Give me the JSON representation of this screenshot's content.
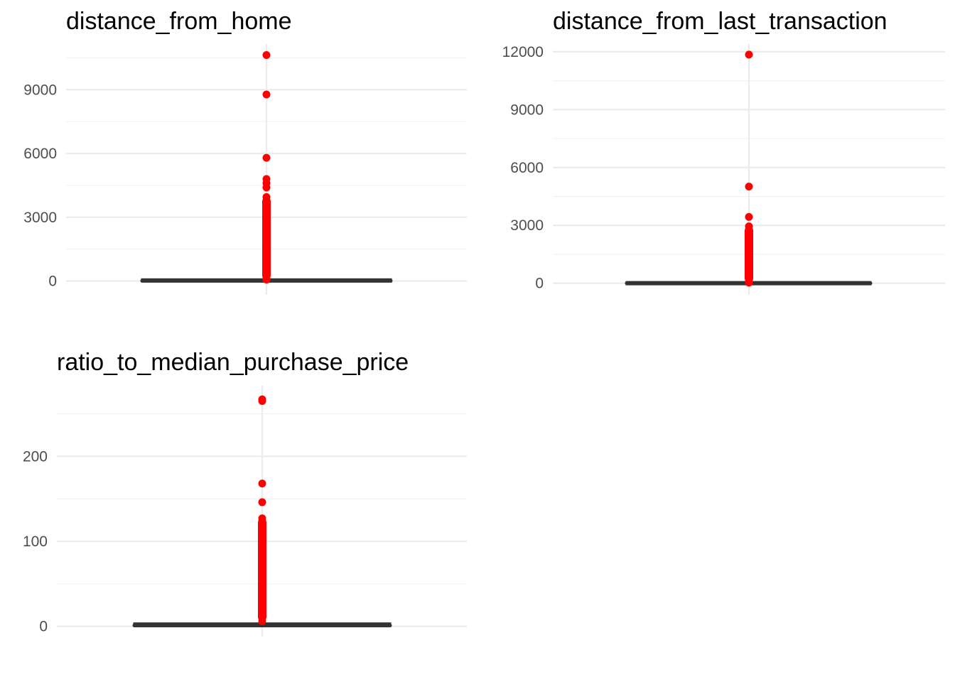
{
  "colors": {
    "outlier": "#ff0000",
    "box": "#333333",
    "grid_major": "#ebebeb",
    "grid_minor": "#f2f2f2",
    "tick_text": "#4d4d4d",
    "title_text": "#000000"
  },
  "chart_data": [
    {
      "type": "boxplot",
      "title": "distance_from_home",
      "xlabel": "",
      "ylabel": "",
      "ylim": [
        -650,
        11150
      ],
      "yticks": [
        0,
        3000,
        6000,
        9000
      ],
      "tick_labels": [
        "0",
        "3000",
        "6000",
        "9000"
      ],
      "grid": true,
      "box": {
        "q1": 4,
        "median": 10,
        "q3": 26,
        "whisker_low": 0,
        "whisker_high": 60
      },
      "outliers": [
        10632,
        8777,
        5797,
        4800,
        4601,
        4400,
        3950,
        3700,
        3450,
        3300,
        3150,
        3000,
        2850,
        2700,
        2550,
        2400,
        2250,
        2100,
        1950,
        1800,
        1650,
        1500,
        1350,
        1200,
        1050,
        900,
        750,
        600,
        450,
        300,
        150,
        70
      ]
    },
    {
      "type": "boxplot",
      "title": "distance_from_last_transaction",
      "xlabel": "",
      "ylabel": "",
      "ylim": [
        -600,
        12400
      ],
      "yticks": [
        0,
        3000,
        6000,
        9000,
        12000
      ],
      "tick_labels": [
        "0",
        "3000",
        "6000",
        "9000",
        "12000"
      ],
      "grid": true,
      "box": {
        "q1": 0.3,
        "median": 1,
        "q3": 3.4,
        "whisker_low": 0,
        "whisker_high": 8
      },
      "outliers": [
        11851,
        5010,
        3438,
        2950,
        2700,
        2500,
        2200,
        2050,
        1900,
        1750,
        1600,
        1450,
        1300,
        1150,
        1000,
        850,
        700,
        550,
        400,
        250,
        120,
        30
      ]
    },
    {
      "type": "boxplot",
      "title": "ratio_to_median_purchase_price",
      "xlabel": "",
      "ylabel": "",
      "ylim": [
        -12,
        283
      ],
      "yticks": [
        0,
        100,
        200
      ],
      "tick_labels": [
        "0",
        "100",
        "200"
      ],
      "grid": true,
      "box": {
        "q1": 0.5,
        "median": 1,
        "q3": 2.1,
        "whisker_low": 0,
        "whisker_high": 4.5
      },
      "outliers": [
        267,
        265,
        168,
        146,
        127,
        124,
        119,
        110,
        106,
        102,
        98,
        94,
        90,
        86,
        82,
        78,
        74,
        70,
        66,
        62,
        58,
        54,
        50,
        46,
        42,
        38,
        34,
        30,
        26,
        22,
        18,
        14,
        10,
        6
      ]
    }
  ]
}
